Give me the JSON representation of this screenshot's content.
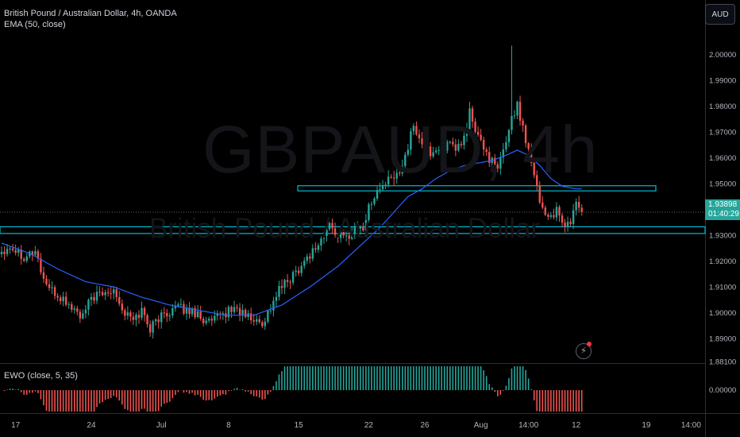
{
  "header": {
    "title": "British Pound / Australian Dollar, 4h, OANDA",
    "indicator": "EMA (50, close)",
    "currency_button": "AUD"
  },
  "watermark": {
    "ticker": "GBPAUD, 4h",
    "name": "British Pound / Australian Dollar"
  },
  "price_badge": {
    "price": "1.93898",
    "countdown": "01:40:29"
  },
  "ewo": {
    "label": "EWO (close, 5, 35)",
    "axis_label": "0.00000"
  },
  "colors": {
    "up": "#26a69a",
    "down": "#ef5350",
    "ema": "#2962ff",
    "zone": "#00bcd4",
    "background": "#000000"
  },
  "chart_data": [
    {
      "type": "candlestick",
      "ylim": [
        1.8811,
        2.007
      ],
      "grid": false,
      "yticks": [
        {
          "v": 2.0,
          "label": "2.00000"
        },
        {
          "v": 1.99,
          "label": "1.99000"
        },
        {
          "v": 1.98,
          "label": "1.98000"
        },
        {
          "v": 1.97,
          "label": "1.97000"
        },
        {
          "v": 1.96,
          "label": "1.96000"
        },
        {
          "v": 1.95,
          "label": "1.95000"
        },
        {
          "v": 1.93,
          "label": "1.93000"
        },
        {
          "v": 1.92,
          "label": "1.92000"
        },
        {
          "v": 1.91,
          "label": "1.91000"
        },
        {
          "v": 1.9,
          "label": "1.90000"
        },
        {
          "v": 1.89,
          "label": "1.89000"
        },
        {
          "v": 1.8811,
          "label": "1.88100"
        }
      ],
      "xticks": [
        {
          "i": 5,
          "label": "17"
        },
        {
          "i": 32,
          "label": "24"
        },
        {
          "i": 57,
          "label": "Jul"
        },
        {
          "i": 81,
          "label": "8"
        },
        {
          "i": 106,
          "label": "15"
        },
        {
          "i": 131,
          "label": "22"
        },
        {
          "i": 151,
          "label": "26"
        },
        {
          "i": 171,
          "label": "Aug"
        },
        {
          "i": 188,
          "label": "14:00"
        },
        {
          "i": 205,
          "label": "12"
        },
        {
          "i": 230,
          "label": "19"
        },
        {
          "i": 246,
          "label": "14:00"
        }
      ],
      "last_price": 1.93898,
      "zones": [
        {
          "from": 1.9472,
          "to": 1.9492
        },
        {
          "from": 1.9307,
          "to": 1.9333
        }
      ],
      "waypoints": [
        [
          0,
          1.924
        ],
        [
          3,
          1.926
        ],
        [
          8,
          1.922
        ],
        [
          12,
          1.924
        ],
        [
          15,
          1.913
        ],
        [
          18,
          1.908
        ],
        [
          22,
          1.905
        ],
        [
          26,
          1.901
        ],
        [
          29,
          1.898
        ],
        [
          32,
          1.906
        ],
        [
          36,
          1.907
        ],
        [
          40,
          1.91
        ],
        [
          43,
          1.901
        ],
        [
          47,
          1.897
        ],
        [
          50,
          1.901
        ],
        [
          53,
          1.894
        ],
        [
          56,
          1.898
        ],
        [
          59,
          1.9
        ],
        [
          62,
          1.902
        ],
        [
          66,
          1.901
        ],
        [
          70,
          1.9
        ],
        [
          73,
          1.896
        ],
        [
          76,
          1.897
        ],
        [
          80,
          1.9
        ],
        [
          83,
          1.902
        ],
        [
          87,
          1.899
        ],
        [
          90,
          1.897
        ],
        [
          93,
          1.896
        ],
        [
          96,
          1.902
        ],
        [
          99,
          1.909
        ],
        [
          102,
          1.912
        ],
        [
          105,
          1.916
        ],
        [
          108,
          1.92
        ],
        [
          111,
          1.924
        ],
        [
          114,
          1.928
        ],
        [
          117,
          1.934
        ],
        [
          120,
          1.93
        ],
        [
          123,
          1.929
        ],
        [
          126,
          1.933
        ],
        [
          129,
          1.933
        ],
        [
          132,
          1.944
        ],
        [
          135,
          1.948
        ],
        [
          138,
          1.951
        ],
        [
          141,
          1.953
        ],
        [
          144,
          1.961
        ],
        [
          147,
          1.972
        ],
        [
          150,
          1.966
        ],
        [
          153,
          1.962
        ],
        [
          156,
          1.963
        ],
        [
          159,
          1.965
        ],
        [
          162,
          1.963
        ],
        [
          165,
          1.967
        ],
        [
          167,
          1.978
        ],
        [
          169,
          1.97
        ],
        [
          171,
          1.966
        ],
        [
          174,
          1.96
        ],
        [
          177,
          1.955
        ],
        [
          180,
          1.967
        ],
        [
          182,
          1.976
        ],
        [
          184,
          1.98
        ],
        [
          186,
          1.972
        ],
        [
          188,
          1.963
        ],
        [
          190,
          1.955
        ],
        [
          192,
          1.943
        ],
        [
          195,
          1.937
        ],
        [
          198,
          1.939
        ],
        [
          200,
          1.934
        ],
        [
          203,
          1.935
        ],
        [
          205,
          1.943
        ],
        [
          207,
          1.939
        ]
      ],
      "ema": [
        [
          0,
          1.927
        ],
        [
          10,
          1.923
        ],
        [
          20,
          1.917
        ],
        [
          30,
          1.912
        ],
        [
          40,
          1.91
        ],
        [
          50,
          1.906
        ],
        [
          60,
          1.903
        ],
        [
          70,
          1.901
        ],
        [
          80,
          1.899
        ],
        [
          90,
          1.899
        ],
        [
          100,
          1.903
        ],
        [
          110,
          1.91
        ],
        [
          120,
          1.918
        ],
        [
          125,
          1.923
        ],
        [
          130,
          1.928
        ],
        [
          135,
          1.933
        ],
        [
          140,
          1.939
        ],
        [
          145,
          1.945
        ],
        [
          150,
          1.948
        ],
        [
          155,
          1.952
        ],
        [
          160,
          1.955
        ],
        [
          165,
          1.957
        ],
        [
          170,
          1.958
        ],
        [
          175,
          1.959
        ],
        [
          180,
          1.961
        ],
        [
          184,
          1.963
        ],
        [
          188,
          1.961
        ],
        [
          192,
          1.957
        ],
        [
          196,
          1.952
        ],
        [
          200,
          1.949
        ],
        [
          205,
          1.948
        ],
        [
          207,
          1.948
        ]
      ]
    },
    {
      "type": "histogram",
      "series": [
        {
          "name": "EWO (close, 5, 35)"
        }
      ],
      "ylim": [
        -0.012,
        0.012
      ]
    }
  ]
}
